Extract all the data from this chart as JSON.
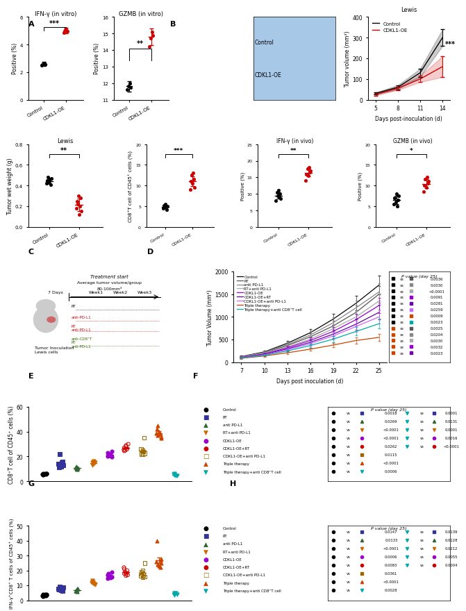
{
  "panel_A_IFN": {
    "title": "IFN-γ (in vitro)",
    "ylabel": "Positive (%)",
    "control_mean": 2.6,
    "control_err": 0.15,
    "control_points": [
      2.5,
      2.6,
      2.65,
      2.55
    ],
    "cdkl1_mean": 5.0,
    "cdkl1_err": 0.2,
    "cdkl1_points": [
      4.85,
      5.05,
      5.1,
      4.95
    ],
    "sig": "***",
    "ylim": [
      0,
      6
    ],
    "yticks": [
      0,
      2,
      4,
      6
    ],
    "color_control": "#000000",
    "color_cdkl1": "#cc0000"
  },
  "panel_A_GZMB": {
    "title": "GZMB (in vitro)",
    "ylabel": "Positive (%)",
    "control_mean": 11.8,
    "control_err": 0.3,
    "control_points": [
      11.6,
      11.8,
      12.0,
      11.75
    ],
    "cdkl1_mean": 14.8,
    "cdkl1_err": 0.5,
    "cdkl1_points": [
      14.2,
      14.7,
      15.1,
      14.9
    ],
    "sig": "**",
    "ylim": [
      11,
      16
    ],
    "yticks": [
      11,
      12,
      13,
      14,
      15,
      16
    ],
    "color_control": "#000000",
    "color_cdkl1": "#cc0000"
  },
  "panel_B_line": {
    "title": "Lewis",
    "ylabel": "Tumor volume (mm³)",
    "xlabel": "Days post-inoculation (d)",
    "days": [
      5,
      8,
      11,
      14
    ],
    "control": [
      30,
      60,
      130,
      300
    ],
    "control_err": [
      5,
      10,
      20,
      40
    ],
    "cdkl1": [
      25,
      55,
      100,
      160
    ],
    "cdkl1_err": [
      5,
      8,
      15,
      50
    ],
    "sig": "***",
    "ylim": [
      0,
      400
    ],
    "yticks": [
      0,
      100,
      200,
      300,
      400
    ],
    "color_control": "#000000",
    "color_cdkl1": "#cc0000"
  },
  "panel_C": {
    "title": "Lewis",
    "ylabel": "Tumor wet weight (g)",
    "control_points": [
      0.42,
      0.45,
      0.48,
      0.43,
      0.44,
      0.46,
      0.41,
      0.47
    ],
    "cdkl1_points": [
      0.18,
      0.25,
      0.22,
      0.3,
      0.12,
      0.2,
      0.28,
      0.15
    ],
    "control_mean": 0.445,
    "control_err": 0.025,
    "cdkl1_mean": 0.212,
    "cdkl1_err": 0.06,
    "sig": "**",
    "ylim": [
      0,
      0.8
    ],
    "yticks": [
      0.0,
      0.2,
      0.4,
      0.6,
      0.8
    ],
    "color_control": "#000000",
    "color_cdkl1": "#cc0000"
  },
  "panel_D_CD8": {
    "title": "",
    "ylabel": "CD8⁺T cell of CD45⁺ cells (%)",
    "control_points": [
      4.5,
      5.2,
      4.8,
      5.5,
      4.2,
      5.0
    ],
    "cdkl1_points": [
      9.0,
      11.0,
      12.5,
      10.5,
      13.0,
      11.5,
      9.5
    ],
    "control_mean": 4.87,
    "control_err": 0.4,
    "cdkl1_mean": 11.0,
    "cdkl1_err": 1.2,
    "sig": "***",
    "ylim": [
      0,
      20
    ],
    "yticks": [
      0,
      5,
      10,
      15,
      20
    ],
    "color_control": "#000000",
    "color_cdkl1": "#cc0000"
  },
  "panel_D_IFN": {
    "title": "IFN-γ (in vivo)",
    "ylabel": "Positive (%)",
    "control_points": [
      8.0,
      10.5,
      9.5,
      11.0,
      9.0,
      10.0,
      8.5
    ],
    "cdkl1_points": [
      14.0,
      16.0,
      17.5,
      15.5,
      18.0,
      16.5,
      17.0
    ],
    "control_mean": 9.5,
    "control_err": 1.0,
    "cdkl1_mean": 16.4,
    "cdkl1_err": 1.2,
    "sig": "**",
    "ylim": [
      0,
      25
    ],
    "yticks": [
      0,
      5,
      10,
      15,
      20,
      25
    ],
    "color_control": "#000000",
    "color_cdkl1": "#cc0000"
  },
  "panel_D_GZMB": {
    "title": "GZMB (in vivo)",
    "ylabel": "Positive (%)",
    "control_points": [
      5.5,
      7.0,
      6.0,
      8.0,
      5.0,
      6.5,
      7.5
    ],
    "cdkl1_points": [
      8.5,
      10.0,
      11.5,
      9.5,
      12.0,
      10.5,
      11.0
    ],
    "control_mean": 6.5,
    "control_err": 1.0,
    "cdkl1_mean": 10.4,
    "cdkl1_err": 1.1,
    "sig": "*",
    "ylim": [
      0,
      20
    ],
    "yticks": [
      0,
      5,
      10,
      15,
      20
    ],
    "color_control": "#000000",
    "color_cdkl1": "#cc0000"
  },
  "panel_F": {
    "title": "",
    "ylabel": "Tumor Volume (mm³)",
    "xlabel": "Days post inoculation (d)",
    "days": [
      7,
      10,
      13,
      16,
      19,
      22,
      25
    ],
    "series": {
      "Control": [
        130,
        230,
        420,
        650,
        950,
        1300,
        1700
      ],
      "RT": [
        120,
        210,
        370,
        560,
        800,
        1100,
        1500
      ],
      "anti PD-L1": [
        125,
        220,
        390,
        600,
        870,
        1200,
        1550
      ],
      "RT+anti PD-L1": [
        115,
        195,
        340,
        510,
        740,
        1000,
        1350
      ],
      "CDKL1-OE": [
        110,
        185,
        320,
        480,
        680,
        940,
        1250
      ],
      "CDKL1-OE+RT": [
        105,
        175,
        295,
        440,
        620,
        840,
        1100
      ],
      "CDKL1-OE+anti PD-L1": [
        100,
        165,
        275,
        410,
        580,
        790,
        1000
      ],
      "Triple therapy": [
        90,
        140,
        210,
        290,
        380,
        480,
        550
      ],
      "Triple therapy+anti CD8⁺T cell": [
        95,
        155,
        250,
        370,
        510,
        680,
        850
      ]
    },
    "errors": {
      "Control": [
        15,
        30,
        55,
        80,
        120,
        160,
        200
      ],
      "RT": [
        12,
        28,
        50,
        75,
        110,
        150,
        185
      ],
      "anti PD-L1": [
        13,
        29,
        52,
        78,
        115,
        155,
        190
      ],
      "RT+anti PD-L1": [
        11,
        25,
        45,
        68,
        100,
        135,
        170
      ],
      "CDKL1-OE": [
        10,
        22,
        42,
        65,
        95,
        130,
        165
      ],
      "CDKL1-OE+RT": [
        10,
        21,
        40,
        62,
        90,
        125,
        160
      ],
      "CDKL1-OE+anti PD-L1": [
        9,
        20,
        38,
        58,
        85,
        118,
        150
      ],
      "Triple therapy": [
        8,
        15,
        25,
        35,
        50,
        65,
        75
      ],
      "Triple therapy+anti CD8⁺T cell": [
        9,
        18,
        30,
        45,
        65,
        90,
        110
      ]
    },
    "colors": {
      "Control": "#000000",
      "RT": "#555555",
      "anti PD-L1": "#888888",
      "RT+anti PD-L1": "#aaaaaa",
      "CDKL1-OE": "#9900cc",
      "CDKL1-OE+RT": "#6600aa",
      "CDKL1-OE+anti PD-L1": "#cc66ff",
      "Triple therapy": "#cc4400",
      "Triple therapy+anti CD8⁺T cell": "#00aaaa"
    },
    "ylim": [
      0,
      2000
    ],
    "yticks": [
      0,
      500,
      1000,
      1500,
      2000
    ]
  },
  "panel_G": {
    "ylabel": "CD8⁺T cell of CD45⁺ cells (%)",
    "ylim": [
      0,
      60
    ],
    "yticks": [
      0,
      20,
      40,
      60
    ],
    "groups": [
      "Control",
      "RT",
      "anti PD-L1",
      "RT+anti PD-L1",
      "CDKL1-OE",
      "CDKL1-OE+RT",
      "CDKL1-OE+anti PD-L1",
      "Triple therapy",
      "Triple therapy+anti CD8⁺T cell"
    ],
    "data": [
      [
        5.5,
        6.0,
        5.8,
        6.5,
        5.2,
        6.2,
        5.7,
        6.3
      ],
      [
        12.0,
        15.0,
        14.0,
        13.0,
        16.0,
        22.0,
        11.5,
        13.5
      ],
      [
        10.0,
        11.0,
        9.5,
        12.0,
        10.5,
        11.5
      ],
      [
        15.0,
        16.0,
        14.5,
        15.5,
        13.0,
        16.5,
        14.0
      ],
      [
        20.0,
        22.0,
        21.0,
        23.0,
        19.5,
        24.0,
        20.5
      ],
      [
        25.0,
        27.0,
        26.0,
        28.0,
        24.5,
        29.0,
        25.5,
        30.0
      ],
      [
        22.0,
        24.0,
        23.0,
        25.0,
        21.5,
        26.0,
        22.5,
        35.0
      ],
      [
        35.0,
        38.0,
        40.0,
        36.0,
        42.0,
        37.0,
        39.0,
        45.0
      ],
      [
        5.0,
        5.5,
        4.8,
        5.2,
        6.0,
        4.5,
        5.8
      ]
    ],
    "markers": [
      "o",
      "s",
      "^",
      "v",
      "o",
      "o",
      "s",
      "^",
      "v"
    ],
    "colors": [
      "#000000",
      "#333399",
      "#336633",
      "#cc6600",
      "#9900cc",
      "#cc0000",
      "#996600",
      "#cc4400",
      "#00aaaa"
    ],
    "pvalues_left": [
      [
        "0.0018"
      ],
      [
        "0.0269"
      ],
      [
        "<0.0001"
      ],
      [
        "<0.0001"
      ],
      [
        "0.0262"
      ],
      [
        "0.0115"
      ],
      [
        "<0.0001"
      ],
      [
        "0.0006"
      ]
    ],
    "pvalues_right": [
      [
        "0.0001"
      ],
      [
        "0.0131"
      ],
      [
        "0.0001"
      ],
      [
        "0.0016"
      ],
      [
        "<0.0001"
      ],
      [
        ""
      ],
      [
        ""
      ],
      [
        ""
      ]
    ]
  },
  "panel_H": {
    "ylabel": "IFN-γ⁺CD8⁺ T cells of CD45⁺ cells (%)",
    "ylim": [
      0,
      50
    ],
    "yticks": [
      0,
      10,
      20,
      30,
      40,
      50
    ],
    "groups": [
      "Control",
      "RT",
      "anti PD-L1",
      "RT+anti PD-L1",
      "CDKL1-OE",
      "CDKL1-OE+RT",
      "CDKL1-OE+anti PD-L1",
      "Triple therapy",
      "Triple therapy+anti CD8⁺T cell"
    ],
    "data": [
      [
        3.0,
        3.5,
        3.2,
        4.0,
        2.8,
        3.8,
        3.1,
        4.2
      ],
      [
        7.0,
        8.0,
        7.5,
        8.5,
        6.5,
        9.0,
        7.2
      ],
      [
        6.5,
        7.0,
        6.0,
        7.8,
        6.2,
        7.5
      ],
      [
        12.0,
        13.0,
        11.5,
        12.5,
        10.5,
        13.5,
        11.0
      ],
      [
        15.0,
        17.0,
        16.0,
        18.0,
        14.5,
        19.0,
        15.5
      ],
      [
        17.0,
        19.0,
        18.0,
        20.0,
        16.5,
        21.0,
        17.5,
        22.0
      ],
      [
        16.0,
        18.0,
        17.0,
        19.0,
        15.5,
        20.0,
        16.5,
        25.0
      ],
      [
        22.0,
        25.0,
        27.0,
        23.0,
        28.0,
        40.0,
        24.0,
        26.0
      ],
      [
        4.0,
        4.5,
        3.8,
        4.2,
        5.0,
        3.5,
        4.8
      ]
    ],
    "markers": [
      "o",
      "s",
      "^",
      "v",
      "o",
      "o",
      "s",
      "^",
      "v"
    ],
    "colors": [
      "#000000",
      "#333399",
      "#336633",
      "#cc6600",
      "#9900cc",
      "#cc0000",
      "#996600",
      "#cc4400",
      "#00aaaa"
    ],
    "pvalues_left": [
      [
        "0.0147"
      ],
      [
        "0.0133"
      ],
      [
        "<0.0001"
      ],
      [
        "0.0006"
      ],
      [
        "0.0083"
      ],
      [
        "0.0361"
      ],
      [
        "<0.0001"
      ],
      [
        "0.0028"
      ]
    ],
    "pvalues_right": [
      [
        "0.0139"
      ],
      [
        "0.0128"
      ],
      [
        "0.0212"
      ],
      [
        "0.0055"
      ],
      [
        "0.0004"
      ],
      [
        ""
      ],
      [
        ""
      ],
      [
        ""
      ]
    ]
  },
  "legend_entries": [
    [
      "o",
      "#000000",
      "Control"
    ],
    [
      "s",
      "#333399",
      "RT"
    ],
    [
      "^",
      "#336633",
      "anti PD-L1"
    ],
    [
      "v",
      "#cc6600",
      "RT+anti PD-L1"
    ],
    [
      "o",
      "#9900cc",
      "CDKL1-OE"
    ],
    [
      "o",
      "#cc0000",
      "CDKL1-OE+RT"
    ],
    [
      "s",
      "#996600",
      "CDKL1-OE+anti PD-L1"
    ],
    [
      "^",
      "#cc4400",
      "Triple therapy"
    ],
    [
      "v",
      "#00aaaa",
      "Triple therapy+anti CD8⁺T cell"
    ]
  ],
  "bg_color": "#ffffff"
}
